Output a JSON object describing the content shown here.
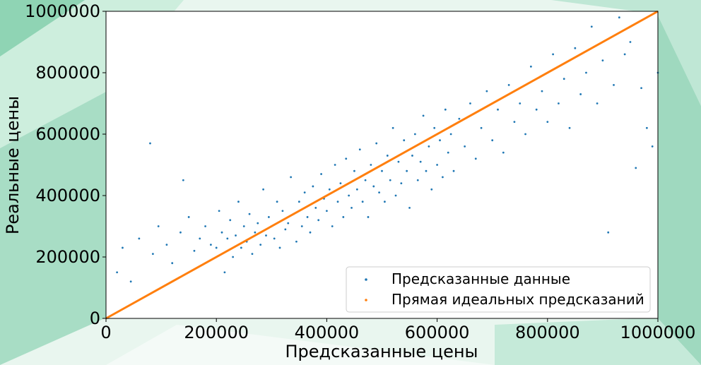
{
  "colors": {
    "background": "#e9f6ef",
    "plot_background": "#ffffff",
    "series_predicted": "#1f77b4",
    "series_ideal": "#ff7f0e"
  },
  "chart_data": {
    "type": "scatter",
    "title": "",
    "xlabel": "Предсказанные цены",
    "ylabel": "Реальные цены",
    "xlim": [
      0,
      1000000
    ],
    "ylim": [
      0,
      1000000
    ],
    "xticks": [
      "0",
      "200000",
      "400000",
      "600000",
      "800000",
      "1000000"
    ],
    "yticks": [
      "0",
      "200000",
      "400000",
      "600000",
      "800000",
      "1000000"
    ],
    "grid": false,
    "legend_position": "lower right",
    "series": [
      {
        "name": "Предсказанные данные",
        "color": "#1f77b4",
        "marker": "point",
        "points": [
          [
            20000,
            150000
          ],
          [
            30000,
            230000
          ],
          [
            45000,
            120000
          ],
          [
            60000,
            260000
          ],
          [
            80000,
            570000
          ],
          [
            85000,
            210000
          ],
          [
            95000,
            300000
          ],
          [
            110000,
            240000
          ],
          [
            120000,
            180000
          ],
          [
            135000,
            280000
          ],
          [
            140000,
            450000
          ],
          [
            150000,
            330000
          ],
          [
            160000,
            220000
          ],
          [
            170000,
            260000
          ],
          [
            180000,
            300000
          ],
          [
            190000,
            240000
          ],
          [
            200000,
            230000
          ],
          [
            205000,
            350000
          ],
          [
            210000,
            280000
          ],
          [
            215000,
            150000
          ],
          [
            220000,
            260000
          ],
          [
            225000,
            320000
          ],
          [
            230000,
            200000
          ],
          [
            235000,
            270000
          ],
          [
            240000,
            380000
          ],
          [
            245000,
            230000
          ],
          [
            250000,
            300000
          ],
          [
            255000,
            250000
          ],
          [
            260000,
            340000
          ],
          [
            265000,
            210000
          ],
          [
            270000,
            280000
          ],
          [
            275000,
            310000
          ],
          [
            280000,
            240000
          ],
          [
            285000,
            420000
          ],
          [
            290000,
            270000
          ],
          [
            295000,
            330000
          ],
          [
            300000,
            300000
          ],
          [
            305000,
            260000
          ],
          [
            310000,
            380000
          ],
          [
            315000,
            230000
          ],
          [
            320000,
            350000
          ],
          [
            325000,
            290000
          ],
          [
            330000,
            310000
          ],
          [
            335000,
            460000
          ],
          [
            340000,
            340000
          ],
          [
            345000,
            250000
          ],
          [
            350000,
            380000
          ],
          [
            355000,
            300000
          ],
          [
            360000,
            410000
          ],
          [
            365000,
            330000
          ],
          [
            370000,
            280000
          ],
          [
            375000,
            430000
          ],
          [
            380000,
            360000
          ],
          [
            385000,
            320000
          ],
          [
            390000,
            470000
          ],
          [
            395000,
            390000
          ],
          [
            400000,
            350000
          ],
          [
            405000,
            420000
          ],
          [
            410000,
            300000
          ],
          [
            415000,
            500000
          ],
          [
            420000,
            380000
          ],
          [
            425000,
            440000
          ],
          [
            430000,
            330000
          ],
          [
            435000,
            520000
          ],
          [
            440000,
            400000
          ],
          [
            445000,
            360000
          ],
          [
            450000,
            480000
          ],
          [
            455000,
            420000
          ],
          [
            460000,
            550000
          ],
          [
            465000,
            380000
          ],
          [
            470000,
            450000
          ],
          [
            475000,
            330000
          ],
          [
            480000,
            500000
          ],
          [
            485000,
            430000
          ],
          [
            490000,
            570000
          ],
          [
            495000,
            410000
          ],
          [
            500000,
            480000
          ],
          [
            505000,
            380000
          ],
          [
            510000,
            530000
          ],
          [
            515000,
            450000
          ],
          [
            520000,
            620000
          ],
          [
            525000,
            400000
          ],
          [
            530000,
            510000
          ],
          [
            535000,
            440000
          ],
          [
            540000,
            580000
          ],
          [
            545000,
            480000
          ],
          [
            550000,
            360000
          ],
          [
            555000,
            530000
          ],
          [
            560000,
            600000
          ],
          [
            565000,
            450000
          ],
          [
            570000,
            510000
          ],
          [
            575000,
            660000
          ],
          [
            580000,
            480000
          ],
          [
            585000,
            560000
          ],
          [
            590000,
            420000
          ],
          [
            595000,
            620000
          ],
          [
            600000,
            500000
          ],
          [
            605000,
            580000
          ],
          [
            610000,
            460000
          ],
          [
            615000,
            680000
          ],
          [
            620000,
            540000
          ],
          [
            625000,
            600000
          ],
          [
            630000,
            480000
          ],
          [
            640000,
            650000
          ],
          [
            650000,
            560000
          ],
          [
            660000,
            700000
          ],
          [
            670000,
            520000
          ],
          [
            680000,
            620000
          ],
          [
            690000,
            740000
          ],
          [
            700000,
            580000
          ],
          [
            710000,
            680000
          ],
          [
            720000,
            540000
          ],
          [
            730000,
            760000
          ],
          [
            740000,
            640000
          ],
          [
            750000,
            700000
          ],
          [
            760000,
            600000
          ],
          [
            770000,
            820000
          ],
          [
            780000,
            680000
          ],
          [
            790000,
            740000
          ],
          [
            800000,
            640000
          ],
          [
            810000,
            860000
          ],
          [
            820000,
            700000
          ],
          [
            830000,
            780000
          ],
          [
            840000,
            620000
          ],
          [
            850000,
            880000
          ],
          [
            860000,
            730000
          ],
          [
            870000,
            800000
          ],
          [
            880000,
            950000
          ],
          [
            890000,
            700000
          ],
          [
            900000,
            840000
          ],
          [
            910000,
            280000
          ],
          [
            920000,
            760000
          ],
          [
            930000,
            980000
          ],
          [
            940000,
            860000
          ],
          [
            950000,
            900000
          ],
          [
            960000,
            490000
          ],
          [
            970000,
            750000
          ],
          [
            980000,
            620000
          ],
          [
            990000,
            560000
          ],
          [
            1000000,
            800000
          ]
        ]
      },
      {
        "name": "Прямая идеальных предсказаний",
        "color": "#ff7f0e",
        "marker": "point",
        "points": [
          [
            0,
            0
          ],
          [
            1000000,
            1000000
          ]
        ]
      }
    ]
  }
}
